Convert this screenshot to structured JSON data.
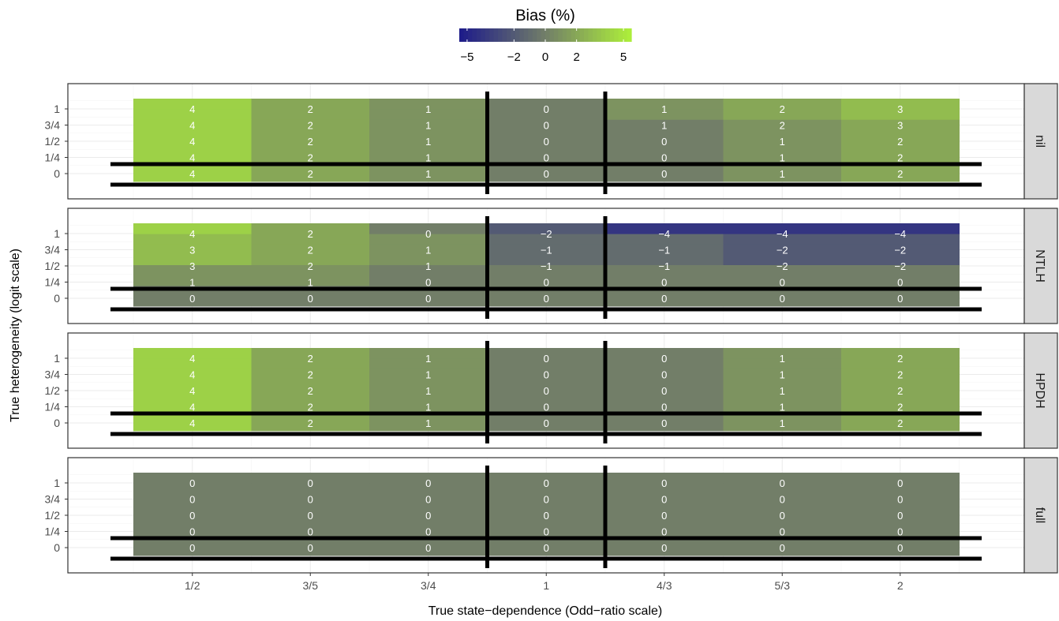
{
  "chart_data": {
    "type": "heatmap",
    "legend": {
      "title": "Bias (%)",
      "ticks": [
        "−5",
        "−2",
        "0",
        "2",
        "5"
      ],
      "tick_values": [
        -5,
        -2,
        0,
        2,
        5
      ],
      "range": [
        -5.5,
        5.5
      ],
      "colors": {
        "low": "#1d1a8a",
        "mid": "#727e68",
        "high": "#adf03a"
      },
      "placement": "top"
    },
    "xlabel": "True state−dependence (Odd−ratio scale)",
    "ylabel": "True heterogeneity (logit scale)",
    "x_categories": [
      "1/2",
      "3/5",
      "3/4",
      "1",
      "4/3",
      "5/3",
      "2"
    ],
    "y_categories": [
      "0",
      "1/4",
      "1/2",
      "3/4",
      "1"
    ],
    "grid": true,
    "panels": [
      {
        "name": "nil",
        "values": [
          [
            4,
            2,
            1,
            0,
            0,
            1,
            2
          ],
          [
            4,
            2,
            1,
            0,
            0,
            1,
            2
          ],
          [
            4,
            2,
            1,
            0,
            0,
            1,
            2
          ],
          [
            4,
            2,
            1,
            0,
            1,
            2,
            3
          ],
          [
            4,
            2,
            1,
            0,
            1,
            2,
            3
          ]
        ]
      },
      {
        "name": "NTLH",
        "values": [
          [
            0,
            0,
            0,
            0,
            0,
            0,
            0
          ],
          [
            1,
            1,
            0,
            0,
            0,
            0,
            0
          ],
          [
            3,
            2,
            1,
            -1,
            -1,
            -2,
            -2
          ],
          [
            3,
            2,
            1,
            -1,
            -1,
            -2,
            -2
          ],
          [
            4,
            2,
            0,
            -2,
            -4,
            -4,
            -4
          ]
        ]
      },
      {
        "name": "HPDH",
        "values": [
          [
            4,
            2,
            1,
            0,
            0,
            1,
            2
          ],
          [
            4,
            2,
            1,
            0,
            0,
            1,
            2
          ],
          [
            4,
            2,
            1,
            0,
            0,
            1,
            2
          ],
          [
            4,
            2,
            1,
            0,
            0,
            1,
            2
          ],
          [
            4,
            2,
            1,
            0,
            0,
            1,
            2
          ]
        ]
      },
      {
        "name": "full",
        "values": [
          [
            0,
            0,
            0,
            0,
            0,
            0,
            0
          ],
          [
            0,
            0,
            0,
            0,
            0,
            0,
            0
          ],
          [
            0,
            0,
            0,
            0,
            0,
            0,
            0
          ],
          [
            0,
            0,
            0,
            0,
            0,
            0,
            0
          ],
          [
            0,
            0,
            0,
            0,
            0,
            0,
            0
          ]
        ]
      }
    ],
    "reference_lines": {
      "x": [
        "3/4",
        "1"
      ],
      "y": [
        "0",
        "1/4"
      ]
    }
  }
}
